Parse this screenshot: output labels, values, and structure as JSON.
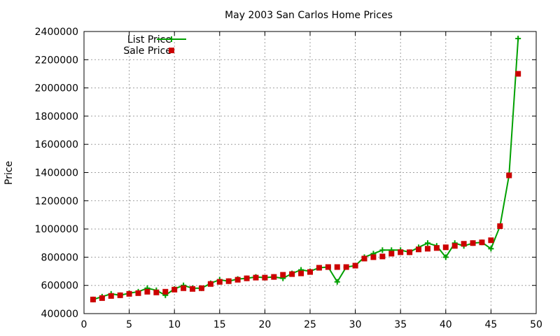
{
  "chart_data": {
    "type": "line",
    "title": "May 2003 San Carlos Home Prices",
    "xlabel": "",
    "ylabel": "Price",
    "xlim": [
      0,
      50
    ],
    "ylim": [
      400000,
      2400000
    ],
    "xticks": [
      0,
      5,
      10,
      15,
      20,
      25,
      30,
      35,
      40,
      45,
      50
    ],
    "yticks": [
      400000,
      600000,
      800000,
      1000000,
      1200000,
      1400000,
      1600000,
      1800000,
      2000000,
      2200000,
      2400000
    ],
    "xtick_labels": [
      "0",
      "5",
      "10",
      "15",
      "20",
      "25",
      "30",
      "35",
      "40",
      "45",
      "50"
    ],
    "ytick_labels": [
      "400000",
      "600000",
      "800000",
      "1000000",
      "1200000",
      "1400000",
      "1600000",
      "1800000",
      "2000000",
      "2200000",
      "2400000"
    ],
    "grid": true,
    "legend_position": "top-left",
    "x": [
      1,
      2,
      3,
      4,
      5,
      6,
      7,
      8,
      9,
      10,
      11,
      12,
      13,
      14,
      15,
      16,
      17,
      18,
      19,
      20,
      21,
      22,
      23,
      24,
      25,
      26,
      27,
      28,
      29,
      30,
      31,
      32,
      33,
      34,
      35,
      36,
      37,
      38,
      39,
      40,
      41,
      42,
      43,
      44,
      45,
      46,
      47,
      48
    ],
    "series": [
      {
        "name": "List Price",
        "style": "line-plus",
        "color": "#00a000",
        "values": [
          500000,
          520000,
          540000,
          530000,
          545000,
          555000,
          580000,
          565000,
          530000,
          575000,
          600000,
          580000,
          580000,
          615000,
          640000,
          630000,
          645000,
          650000,
          660000,
          655000,
          660000,
          650000,
          685000,
          710000,
          700000,
          725000,
          730000,
          625000,
          730000,
          740000,
          800000,
          825000,
          850000,
          850000,
          850000,
          835000,
          870000,
          900000,
          880000,
          800000,
          900000,
          880000,
          900000,
          905000,
          860000,
          1020000,
          1380000,
          2350000
        ]
      },
      {
        "name": "Sale Price",
        "style": "square",
        "color": "#cc0000",
        "values": [
          500000,
          510000,
          525000,
          530000,
          540000,
          545000,
          555000,
          550000,
          555000,
          570000,
          580000,
          575000,
          580000,
          610000,
          625000,
          630000,
          640000,
          650000,
          655000,
          655000,
          660000,
          675000,
          680000,
          685000,
          695000,
          725000,
          730000,
          730000,
          730000,
          740000,
          790000,
          800000,
          805000,
          825000,
          835000,
          835000,
          855000,
          860000,
          865000,
          870000,
          880000,
          895000,
          900000,
          905000,
          920000,
          1020000,
          1380000,
          2100000
        ]
      }
    ]
  }
}
